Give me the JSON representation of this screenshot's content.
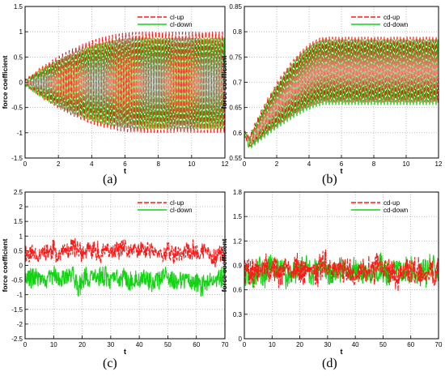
{
  "colors": {
    "up": "#ff1a1a",
    "down": "#14d214",
    "grid": "#9a9a9a",
    "axis": "#000000"
  },
  "chart_data": [
    {
      "id": "a",
      "caption": "(a)",
      "type": "line",
      "xlabel": "t",
      "ylabel": "force coefficient",
      "xlim": [
        0,
        12
      ],
      "ylim": [
        -1.5,
        1.5
      ],
      "xticks": [
        "0",
        "2",
        "4",
        "6",
        "8",
        "10",
        "12"
      ],
      "yticks": [
        "-1.5",
        "-1",
        "-0.5",
        "0",
        "0.5",
        "1",
        "1.5"
      ],
      "legend_position": "top-right",
      "series": [
        {
          "name": "cl-up",
          "style": "dashed",
          "signal": {
            "kind": "growth",
            "freq": 5.0,
            "mean": 0.0,
            "amp_start": 0.05,
            "amp_end": 1.0,
            "t_sat": 7.0,
            "phase": 0.0
          }
        },
        {
          "name": "cl-down",
          "style": "solid",
          "signal": {
            "kind": "growth",
            "freq": 5.0,
            "mean": -0.02,
            "amp_start": 0.05,
            "amp_end": 0.9,
            "t_sat": 7.0,
            "phase": 3.14159
          }
        }
      ]
    },
    {
      "id": "b",
      "caption": "(b)",
      "type": "line",
      "xlabel": "t",
      "ylabel": "force coefficient",
      "xlim": [
        0,
        12
      ],
      "ylim": [
        0.55,
        0.85
      ],
      "xticks": [
        "0",
        "2",
        "4",
        "6",
        "8",
        "10",
        "12"
      ],
      "yticks": [
        "0.55",
        "0.6",
        "0.65",
        "0.7",
        "0.75",
        "0.8",
        "0.85"
      ],
      "legend_position": "top-right",
      "series": [
        {
          "name": "cd-up",
          "style": "dashed",
          "signal": {
            "kind": "rise",
            "freq": 5.0,
            "min_at": 0.3,
            "min_val": 0.583,
            "mean_end": 0.725,
            "amp_start": 0.004,
            "amp_end": 0.065,
            "t_sat": 5.0,
            "phase": 0.0
          }
        },
        {
          "name": "cd-down",
          "style": "solid",
          "signal": {
            "kind": "rise",
            "freq": 5.0,
            "min_at": 0.3,
            "min_val": 0.578,
            "mean_end": 0.72,
            "amp_start": 0.004,
            "amp_end": 0.065,
            "t_sat": 5.0,
            "phase": 3.14159
          }
        }
      ]
    },
    {
      "id": "c",
      "caption": "(c)",
      "type": "line",
      "xlabel": "t",
      "ylabel": "force coefficient",
      "xlim": [
        0,
        70
      ],
      "ylim": [
        -2.5,
        2.5
      ],
      "xticks": [
        "0",
        "10",
        "20",
        "30",
        "40",
        "50",
        "60",
        "70"
      ],
      "yticks": [
        "-2.5",
        "-2",
        "-1.5",
        "-1",
        "-0.5",
        "0",
        "0.5",
        "1",
        "1.5",
        "2",
        "2.5"
      ],
      "legend_position": "top-right",
      "series": [
        {
          "name": "cl-up",
          "style": "dashed",
          "signal": {
            "kind": "noise",
            "mean": 0.45,
            "amp": 0.55,
            "seed": 11,
            "step": 0.12
          }
        },
        {
          "name": "cl-down",
          "style": "solid",
          "signal": {
            "kind": "noise",
            "mean": -0.45,
            "amp": 0.6,
            "seed": 29,
            "step": 0.12
          }
        }
      ]
    },
    {
      "id": "d",
      "caption": "(d)",
      "type": "line",
      "xlabel": "t",
      "ylabel": "force coefficient",
      "xlim": [
        0,
        70
      ],
      "ylim": [
        0,
        1.8
      ],
      "xticks": [
        "0",
        "10",
        "20",
        "30",
        "40",
        "50",
        "60",
        "70"
      ],
      "yticks": [
        "0",
        "0.3",
        "0.6",
        "0.9",
        "1.2",
        "1.5",
        "1.8"
      ],
      "legend_position": "top-right",
      "series": [
        {
          "name": "cd-up",
          "style": "dashed",
          "signal": {
            "kind": "noise",
            "mean": 0.85,
            "amp": 0.28,
            "seed": 7,
            "step": 0.12
          }
        },
        {
          "name": "cd-down",
          "style": "solid",
          "signal": {
            "kind": "noise",
            "mean": 0.82,
            "amp": 0.28,
            "seed": 43,
            "step": 0.12
          }
        }
      ]
    }
  ]
}
